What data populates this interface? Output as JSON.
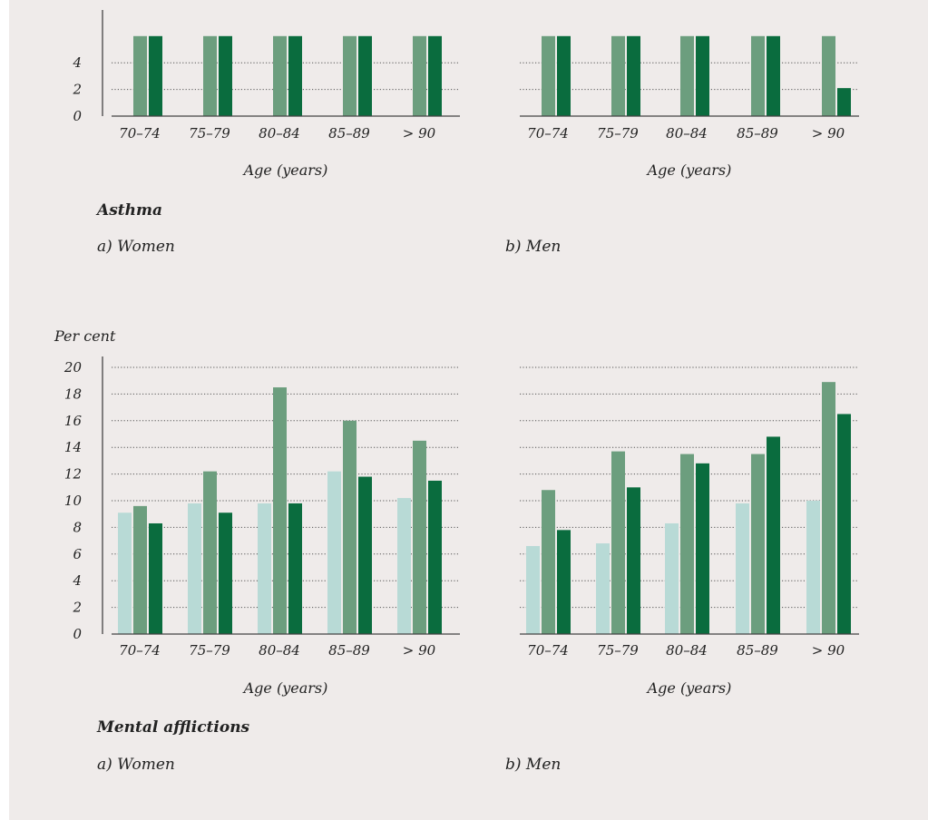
{
  "colors": {
    "background": "#efebea",
    "series": [
      "#b8dad6",
      "#6c9e7e",
      "#0a6c3e"
    ]
  },
  "asthma": {
    "title": "Asthma",
    "women_caption": "a) Women",
    "men_caption": "b) Men"
  },
  "mental": {
    "title": "Mental afflictions",
    "women_caption": "a) Women",
    "men_caption": "b) Men"
  },
  "chart_data": [
    {
      "type": "bar",
      "panel": "Asthma – a) Women",
      "categories": [
        "70–74",
        "75–79",
        "80–84",
        "85–89",
        "> 90"
      ],
      "xlabel": "Age (years)",
      "ylabel": "",
      "y_ticks_visible": [
        0,
        2,
        4
      ],
      "grid": true,
      "series": [
        {
          "values": [
            0,
            0,
            0,
            0,
            0
          ]
        },
        {
          "values": [
            6,
            6,
            6,
            6,
            6
          ]
        },
        {
          "values": [
            6,
            6,
            6,
            6,
            6
          ]
        }
      ]
    },
    {
      "type": "bar",
      "panel": "Asthma – b) Men",
      "categories": [
        "70–74",
        "75–79",
        "80–84",
        "85–89",
        "> 90"
      ],
      "xlabel": "Age (years)",
      "grid": true,
      "series": [
        {
          "values": [
            0,
            0,
            0,
            0,
            0
          ]
        },
        {
          "values": [
            6,
            6,
            6,
            6,
            6
          ]
        },
        {
          "values": [
            6,
            6,
            6,
            6,
            2.1
          ]
        }
      ]
    },
    {
      "type": "bar",
      "panel": "Mental afflictions – a) Women",
      "categories": [
        "70–74",
        "75–79",
        "80–84",
        "85–89",
        "> 90"
      ],
      "xlabel": "Age (years)",
      "ylabel": "Per cent",
      "ylim": [
        0,
        20
      ],
      "y_ticks": [
        0,
        2,
        4,
        6,
        8,
        10,
        12,
        14,
        16,
        18,
        20
      ],
      "grid": true,
      "series": [
        {
          "values": [
            9.1,
            9.8,
            9.8,
            12.2,
            10.2
          ]
        },
        {
          "values": [
            9.6,
            12.2,
            18.5,
            16.0,
            14.5
          ]
        },
        {
          "values": [
            8.3,
            9.1,
            9.8,
            11.8,
            11.5
          ]
        }
      ]
    },
    {
      "type": "bar",
      "panel": "Mental afflictions – b) Men",
      "categories": [
        "70–74",
        "75–79",
        "80–84",
        "85–89",
        "> 90"
      ],
      "xlabel": "Age (years)",
      "ylim": [
        0,
        20
      ],
      "grid": true,
      "series": [
        {
          "values": [
            6.6,
            6.8,
            8.3,
            9.8,
            10.0
          ]
        },
        {
          "values": [
            10.8,
            13.7,
            13.5,
            13.5,
            18.9
          ]
        },
        {
          "values": [
            7.8,
            11.0,
            12.8,
            14.8,
            16.5
          ]
        }
      ]
    }
  ]
}
